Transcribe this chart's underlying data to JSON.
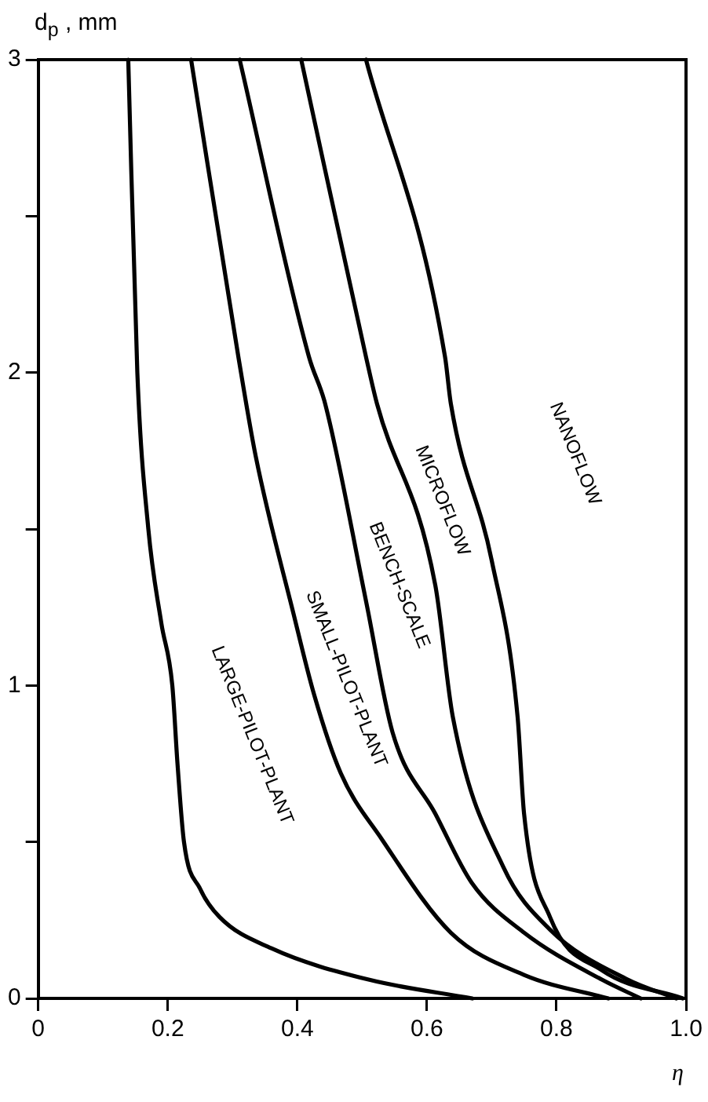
{
  "chart_data": {
    "type": "line",
    "xlabel": "η",
    "ylabel": "d$_{p}$ , mm",
    "xlim": [
      0,
      1
    ],
    "ylim": [
      0,
      3
    ],
    "xticks": [
      0,
      0.2,
      0.4,
      0.6,
      0.8,
      {
        "value": 1,
        "label": "1.0"
      }
    ],
    "yticks": [
      0,
      {
        "value": 0.5,
        "label": null
      },
      1,
      {
        "value": 1.5,
        "label": null
      },
      2,
      {
        "value": 2.5,
        "label": null
      },
      3
    ],
    "grid": false,
    "legend": false,
    "marker": "none",
    "line_style": "solid",
    "series": [
      {
        "color": "#000000",
        "x": [
          0.139,
          0.153,
          0.17,
          0.19,
          0.207,
          0.215,
          0.225,
          0.25,
          0.28,
          0.36,
          0.51,
          0.67
        ],
        "values": [
          3,
          2,
          1.5,
          1.2,
          1,
          0.75,
          0.5,
          0.35,
          0.26,
          0.16,
          0.06,
          0
        ]
      },
      {
        "color": "#000000",
        "x": [
          0.236,
          0.309,
          0.336,
          0.394,
          0.426,
          0.467,
          0.53,
          0.637,
          0.75,
          0.88
        ],
        "values": [
          3,
          2.05,
          1.73,
          1.23,
          0.97,
          0.72,
          0.51,
          0.21,
          0.075,
          0
        ]
      },
      {
        "color": "#000000",
        "x": [
          0.311,
          0.418,
          0.443,
          0.506,
          0.547,
          0.613,
          0.669,
          0.75,
          0.87,
          0.93
        ],
        "values": [
          3,
          2.05,
          1.9,
          1.27,
          0.85,
          0.59,
          0.37,
          0.21,
          0.06,
          0
        ]
      },
      {
        "color": "#000000",
        "x": [
          0.406,
          0.506,
          0.523,
          0.613,
          0.64,
          0.718,
          0.79,
          0.91,
          0.985
        ],
        "values": [
          3,
          2.05,
          1.9,
          1.32,
          0.9,
          0.42,
          0.22,
          0.06,
          0
        ]
      },
      {
        "color": "#000000",
        "x": [
          0.506,
          0.628,
          0.637,
          0.7,
          0.74,
          0.75,
          0.79,
          0.87,
          0.995
        ],
        "values": [
          3,
          2.05,
          1.9,
          1.4,
          0.9,
          0.59,
          0.26,
          0.09,
          0
        ]
      }
    ],
    "annotations": [
      "LARGE-PILOT-PLANT",
      "SMALL-PILOT-PLANT",
      "BENCH-SCALE",
      "MICROFLOW",
      "NANOFLOW"
    ]
  }
}
